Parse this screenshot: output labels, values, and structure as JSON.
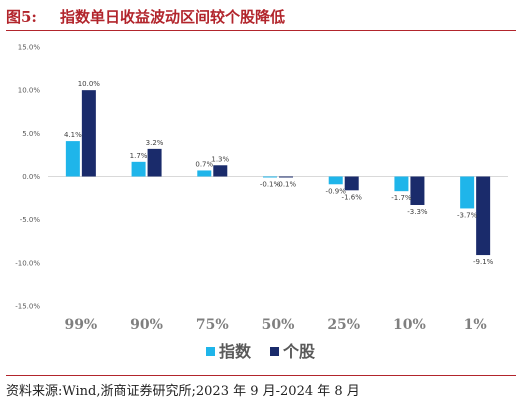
{
  "header": {
    "figure_label": "图5:",
    "title": "指数单日收益波动区间较个股降低"
  },
  "footer": {
    "source": "资料来源:Wind,浙商证券研究所;2023 年 9 月-2024 年 8 月"
  },
  "colors": {
    "index_series": "#1fb5ea",
    "stock_series": "#1a2b6b",
    "title_red": "#b2252c"
  },
  "chart_data": {
    "type": "bar",
    "categories": [
      "99%",
      "90%",
      "75%",
      "50%",
      "25%",
      "10%",
      "1%"
    ],
    "series": [
      {
        "name": "指数",
        "values": [
          4.1,
          1.7,
          0.7,
          -0.1,
          -0.9,
          -1.7,
          -3.7
        ],
        "labels": [
          "4.1%",
          "1.7%",
          "0.7%",
          "-0.1%",
          "-0.9%",
          "-1.7%",
          "-3.7%"
        ]
      },
      {
        "name": "个股",
        "values": [
          10.0,
          3.2,
          1.3,
          -0.1,
          -1.6,
          -3.3,
          -9.1
        ],
        "labels": [
          "10.0%",
          "3.2%",
          "1.3%",
          "-0.1%",
          "-1.6%",
          "-3.3%",
          "-9.1%"
        ]
      }
    ],
    "ylim": [
      -15,
      15
    ],
    "yticks": [
      15,
      10,
      5,
      0,
      -5,
      -10,
      -15
    ],
    "ytick_labels": [
      "15.0%",
      "10.0%",
      "5.0%",
      "0.0%",
      "-5.0%",
      "-10.0%",
      "-15.0%"
    ],
    "grid": false,
    "legend": "bottom"
  }
}
